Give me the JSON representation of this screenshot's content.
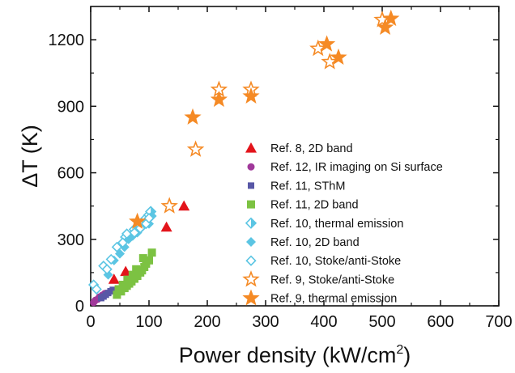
{
  "chart_data": {
    "type": "scatter",
    "xlabel": "Power density (kW/cm",
    "xlabel_superscript": "2",
    "xlabel_suffix": ")",
    "ylabel": "ΔT (K)",
    "xlim": [
      0,
      700
    ],
    "ylim": [
      0,
      1350
    ],
    "x_ticks": [
      0,
      100,
      200,
      300,
      400,
      500,
      600,
      700
    ],
    "y_ticks": [
      0,
      300,
      600,
      900,
      1200
    ],
    "grid": false,
    "legend_position": "right-center",
    "series": [
      {
        "name": "Ref. 8, 2D band",
        "marker": "triangle",
        "color": "#e3141b",
        "filled": true,
        "points": [
          [
            40,
            120
          ],
          [
            60,
            155
          ],
          [
            130,
            355
          ],
          [
            160,
            450
          ]
        ]
      },
      {
        "name": "Ref. 12, IR imaging on Si surface",
        "marker": "circle",
        "color": "#a0389a",
        "filled": true,
        "points": [
          [
            5,
            15
          ],
          [
            8,
            25
          ],
          [
            12,
            30
          ],
          [
            15,
            40
          ],
          [
            20,
            48
          ],
          [
            24,
            55
          ]
        ]
      },
      {
        "name": "Ref. 11, SThM",
        "marker": "square-small",
        "color": "#5857a6",
        "filled": true,
        "points": [
          [
            18,
            35
          ],
          [
            22,
            42
          ],
          [
            26,
            50
          ],
          [
            30,
            58
          ],
          [
            34,
            66
          ],
          [
            38,
            72
          ]
        ]
      },
      {
        "name": "Ref. 11, 2D band",
        "marker": "square",
        "color": "#7cc242",
        "filled": true,
        "points": [
          [
            45,
            50
          ],
          [
            52,
            65
          ],
          [
            58,
            80
          ],
          [
            62,
            90
          ],
          [
            66,
            100
          ],
          [
            70,
            110
          ],
          [
            75,
            122
          ],
          [
            80,
            135
          ],
          [
            85,
            150
          ],
          [
            88,
            160
          ],
          [
            92,
            175
          ],
          [
            95,
            190
          ],
          [
            100,
            205
          ],
          [
            105,
            240
          ],
          [
            48,
            75
          ],
          [
            55,
            95
          ],
          [
            63,
            118
          ],
          [
            72,
            140
          ],
          [
            90,
            215
          ],
          [
            78,
            165
          ]
        ]
      },
      {
        "name": "Ref. 10, thermal emission",
        "marker": "diamond-half",
        "color": "#5bc5e3",
        "filled": "half",
        "points": [
          [
            60,
            310
          ],
          [
            75,
            345
          ],
          [
            88,
            375
          ],
          [
            95,
            395
          ],
          [
            100,
            410
          ],
          [
            103,
            425
          ]
        ]
      },
      {
        "name": "Ref. 10, 2D band",
        "marker": "diamond",
        "color": "#5bc5e3",
        "filled": true,
        "points": [
          [
            30,
            140
          ],
          [
            40,
            205
          ],
          [
            50,
            235
          ],
          [
            58,
            265
          ],
          [
            65,
            300
          ],
          [
            72,
            315
          ],
          [
            80,
            330
          ],
          [
            88,
            355
          ],
          [
            95,
            380
          ],
          [
            100,
            370
          ],
          [
            105,
            405
          ]
        ]
      },
      {
        "name": "Ref. 10, Stoke/anti-Stoke",
        "marker": "diamond-open",
        "color": "#5bc5e3",
        "filled": false,
        "points": [
          [
            5,
            95
          ],
          [
            10,
            75
          ],
          [
            22,
            180
          ],
          [
            28,
            165
          ],
          [
            35,
            210
          ],
          [
            45,
            265
          ],
          [
            55,
            285
          ],
          [
            62,
            325
          ],
          [
            75,
            330
          ],
          [
            85,
            350
          ],
          [
            95,
            370
          ],
          [
            100,
            395
          ]
        ]
      },
      {
        "name": "Ref. 9, Stoke/anti-Stoke",
        "marker": "star-open",
        "color": "#f58a25",
        "filled": false,
        "points": [
          [
            135,
            450
          ],
          [
            180,
            705
          ],
          [
            220,
            975
          ],
          [
            275,
            975
          ],
          [
            390,
            1160
          ],
          [
            410,
            1100
          ],
          [
            500,
            1290
          ]
        ]
      },
      {
        "name": "Ref. 9, thermal emission",
        "marker": "star",
        "color": "#f58a25",
        "filled": true,
        "points": [
          [
            80,
            380
          ],
          [
            175,
            850
          ],
          [
            220,
            930
          ],
          [
            275,
            945
          ],
          [
            405,
            1180
          ],
          [
            425,
            1120
          ],
          [
            505,
            1255
          ],
          [
            515,
            1295
          ]
        ]
      }
    ]
  }
}
